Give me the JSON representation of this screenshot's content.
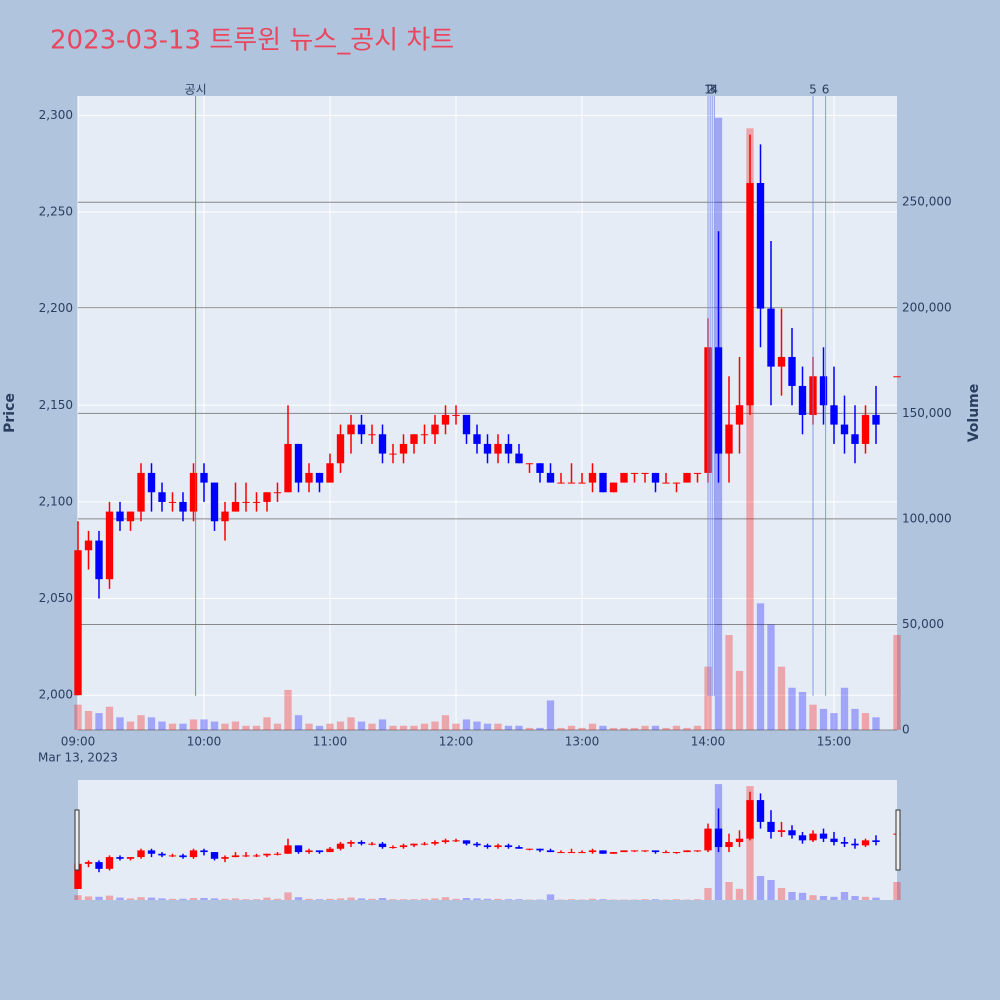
{
  "chart_data": {
    "type": "candlestick",
    "title": "2023-03-13 트루윈 뉴스_공시 차트",
    "y_label": "Price",
    "y2_label": "Volume",
    "x_date_label": "Mar 13, 2023",
    "increasing_color": "#ff0000",
    "decreasing_color": "#0000ff",
    "title_color": "#e8475f",
    "x": [
      "09:00",
      "09:05",
      "09:10",
      "09:15",
      "09:20",
      "09:25",
      "09:30",
      "09:35",
      "09:40",
      "09:45",
      "09:50",
      "09:55",
      "10:00",
      "10:05",
      "10:10",
      "10:15",
      "10:20",
      "10:25",
      "10:30",
      "10:35",
      "10:40",
      "10:45",
      "10:50",
      "10:55",
      "11:00",
      "11:05",
      "11:10",
      "11:15",
      "11:20",
      "11:25",
      "11:30",
      "11:35",
      "11:40",
      "11:45",
      "11:50",
      "11:55",
      "12:00",
      "12:05",
      "12:10",
      "12:15",
      "12:20",
      "12:25",
      "12:30",
      "12:35",
      "12:40",
      "12:45",
      "12:50",
      "12:55",
      "13:00",
      "13:05",
      "13:10",
      "13:15",
      "13:20",
      "13:25",
      "13:30",
      "13:35",
      "13:40",
      "13:45",
      "13:50",
      "13:55",
      "14:00",
      "14:05",
      "14:10",
      "14:15",
      "14:20",
      "14:25",
      "14:30",
      "14:35",
      "14:40",
      "14:45",
      "14:50",
      "14:55",
      "15:00",
      "15:05",
      "15:10",
      "15:15",
      "15:20",
      "15:30"
    ],
    "ohlc": [
      [
        2000,
        2090,
        2000,
        2075
      ],
      [
        2075,
        2085,
        2065,
        2080
      ],
      [
        2080,
        2085,
        2050,
        2060
      ],
      [
        2060,
        2100,
        2055,
        2095
      ],
      [
        2095,
        2100,
        2085,
        2090
      ],
      [
        2090,
        2095,
        2085,
        2095
      ],
      [
        2095,
        2120,
        2090,
        2115
      ],
      [
        2115,
        2120,
        2095,
        2105
      ],
      [
        2105,
        2110,
        2095,
        2100
      ],
      [
        2100,
        2105,
        2095,
        2100
      ],
      [
        2100,
        2105,
        2090,
        2095
      ],
      [
        2095,
        2120,
        2090,
        2115
      ],
      [
        2115,
        2120,
        2100,
        2110
      ],
      [
        2110,
        2110,
        2085,
        2090
      ],
      [
        2090,
        2100,
        2080,
        2095
      ],
      [
        2095,
        2110,
        2095,
        2100
      ],
      [
        2100,
        2110,
        2095,
        2100
      ],
      [
        2100,
        2105,
        2095,
        2100
      ],
      [
        2100,
        2105,
        2095,
        2105
      ],
      [
        2105,
        2110,
        2100,
        2105
      ],
      [
        2105,
        2150,
        2105,
        2130
      ],
      [
        2130,
        2130,
        2105,
        2110
      ],
      [
        2110,
        2120,
        2105,
        2115
      ],
      [
        2115,
        2115,
        2105,
        2110
      ],
      [
        2110,
        2125,
        2110,
        2120
      ],
      [
        2120,
        2140,
        2115,
        2135
      ],
      [
        2135,
        2145,
        2125,
        2140
      ],
      [
        2140,
        2145,
        2130,
        2135
      ],
      [
        2135,
        2140,
        2130,
        2135
      ],
      [
        2135,
        2140,
        2120,
        2125
      ],
      [
        2125,
        2130,
        2120,
        2125
      ],
      [
        2125,
        2135,
        2120,
        2130
      ],
      [
        2130,
        2135,
        2125,
        2135
      ],
      [
        2135,
        2140,
        2130,
        2135
      ],
      [
        2135,
        2145,
        2130,
        2140
      ],
      [
        2140,
        2150,
        2135,
        2145
      ],
      [
        2145,
        2150,
        2140,
        2145
      ],
      [
        2145,
        2145,
        2130,
        2135
      ],
      [
        2135,
        2140,
        2125,
        2130
      ],
      [
        2130,
        2135,
        2120,
        2125
      ],
      [
        2125,
        2135,
        2120,
        2130
      ],
      [
        2130,
        2135,
        2120,
        2125
      ],
      [
        2125,
        2130,
        2120,
        2120
      ],
      [
        2120,
        2120,
        2115,
        2120
      ],
      [
        2120,
        2120,
        2110,
        2115
      ],
      [
        2115,
        2120,
        2110,
        2110
      ],
      [
        2110,
        2115,
        2110,
        2110
      ],
      [
        2110,
        2120,
        2110,
        2110
      ],
      [
        2110,
        2115,
        2110,
        2110
      ],
      [
        2110,
        2120,
        2105,
        2115
      ],
      [
        2115,
        2115,
        2105,
        2105
      ],
      [
        2105,
        2110,
        2105,
        2110
      ],
      [
        2110,
        2115,
        2110,
        2115
      ],
      [
        2115,
        2115,
        2110,
        2115
      ],
      [
        2115,
        2115,
        2110,
        2115
      ],
      [
        2115,
        2115,
        2105,
        2110
      ],
      [
        2110,
        2115,
        2110,
        2110
      ],
      [
        2110,
        2110,
        2105,
        2110
      ],
      [
        2110,
        2115,
        2110,
        2115
      ],
      [
        2115,
        2115,
        2110,
        2115
      ],
      [
        2115,
        2195,
        2110,
        2180
      ],
      [
        2180,
        2240,
        2110,
        2125
      ],
      [
        2125,
        2165,
        2110,
        2140
      ],
      [
        2140,
        2175,
        2125,
        2150
      ],
      [
        2150,
        2290,
        2145,
        2265
      ],
      [
        2265,
        2285,
        2180,
        2200
      ],
      [
        2200,
        2235,
        2150,
        2170
      ],
      [
        2170,
        2200,
        2155,
        2175
      ],
      [
        2175,
        2190,
        2150,
        2160
      ],
      [
        2160,
        2170,
        2135,
        2145
      ],
      [
        2145,
        2175,
        2140,
        2165
      ],
      [
        2165,
        2180,
        2140,
        2150
      ],
      [
        2150,
        2170,
        2130,
        2140
      ],
      [
        2140,
        2155,
        2125,
        2135
      ],
      [
        2135,
        2150,
        2120,
        2130
      ],
      [
        2130,
        2150,
        2125,
        2145
      ],
      [
        2145,
        2160,
        2130,
        2140
      ],
      [
        2165,
        2165,
        2165,
        2165
      ]
    ],
    "volume": [
      12000,
      9000,
      8000,
      11000,
      6000,
      4000,
      7000,
      6000,
      4000,
      3000,
      3000,
      5000,
      5000,
      4000,
      3000,
      4000,
      2000,
      2000,
      6000,
      3000,
      19000,
      7000,
      3000,
      2000,
      3000,
      4000,
      6000,
      4000,
      3000,
      5000,
      2000,
      2000,
      2000,
      3000,
      4000,
      7000,
      3000,
      5000,
      4000,
      3000,
      3000,
      2000,
      2000,
      1000,
      1000,
      14000,
      1000,
      2000,
      1000,
      3000,
      2000,
      1000,
      1000,
      1000,
      2000,
      2000,
      1000,
      2000,
      1000,
      2000,
      30000,
      290000,
      45000,
      28000,
      285000,
      60000,
      50000,
      30000,
      20000,
      18000,
      12000,
      10000,
      8000,
      20000,
      10000,
      8000,
      6000,
      45000
    ],
    "xlim": [
      "09:00",
      "15:30"
    ],
    "xticks": [
      "09:00",
      "10:00",
      "11:00",
      "12:00",
      "13:00",
      "14:00",
      "15:00"
    ],
    "ylim": [
      1982,
      2310
    ],
    "yticks": [
      {
        "value": 2000,
        "label": "2,000"
      },
      {
        "value": 2050,
        "label": "2,050"
      },
      {
        "value": 2100,
        "label": "2,100"
      },
      {
        "value": 2150,
        "label": "2,150"
      },
      {
        "value": 2200,
        "label": "2,200"
      },
      {
        "value": 2250,
        "label": "2,250"
      },
      {
        "value": 2300,
        "label": "2,300"
      }
    ],
    "y2lim": [
      0,
      300300
    ],
    "y2ticks": [
      0,
      {
        "value": 50000,
        "label": "50,000"
      },
      {
        "value": 100000,
        "label": "100,000"
      },
      {
        "value": 150000,
        "label": "150,000"
      },
      {
        "value": 200000,
        "label": "200,000"
      },
      {
        "value": 250000,
        "label": "250,000"
      }
    ],
    "annotations": [
      {
        "x": "09:56",
        "label": "공시",
        "color": "#2ca02c"
      },
      {
        "x": "14:00",
        "label": "1",
        "color": "#6f87e8"
      },
      {
        "x": "14:01",
        "label": "2",
        "color": "#6f87e8"
      },
      {
        "x": "14:02",
        "label": "3",
        "color": "#6f87e8"
      },
      {
        "x": "14:03",
        "label": "4",
        "color": "#6f87e8"
      },
      {
        "x": "14:50",
        "label": "5",
        "color": "#6f87e8"
      },
      {
        "x": "14:56",
        "label": "6",
        "color": "#6f87e8"
      }
    ]
  }
}
